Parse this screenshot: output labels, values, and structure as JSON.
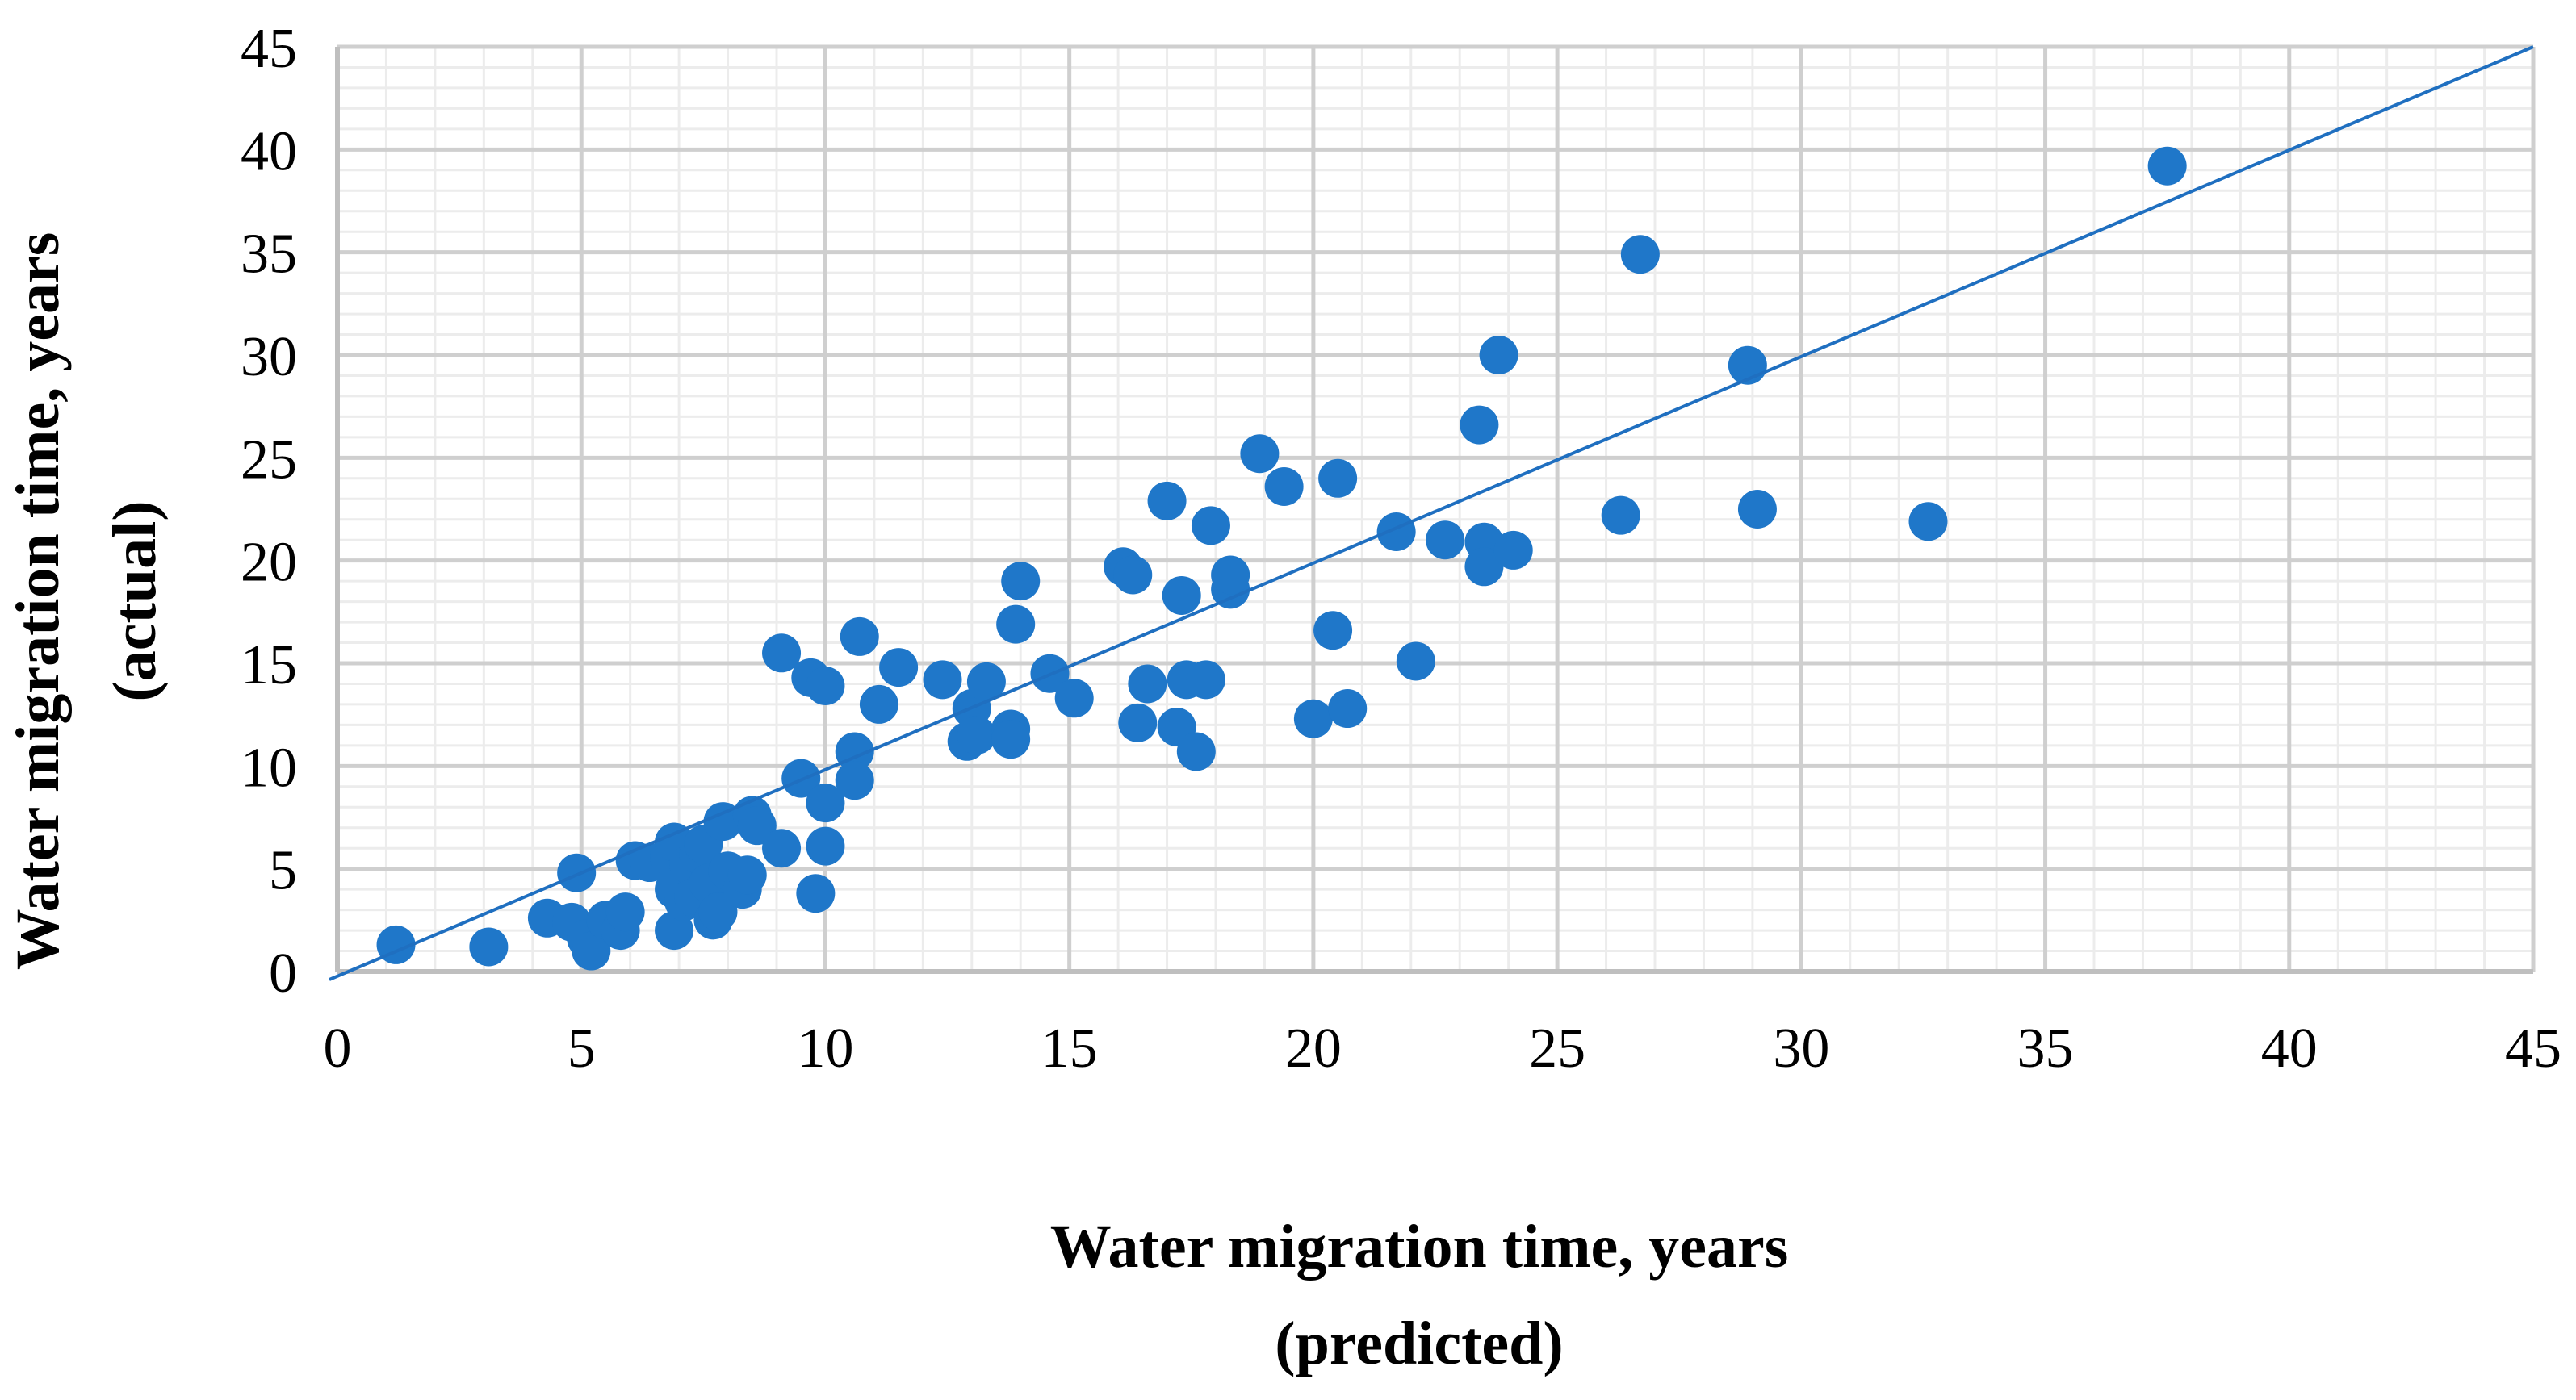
{
  "chart_data": {
    "type": "scatter",
    "title": "",
    "xlabel_lines": [
      "Water migration time, years",
      "(predicted)"
    ],
    "ylabel_lines": [
      "Water migration time, years",
      "(actual)"
    ],
    "xlim": [
      0,
      45
    ],
    "ylim": [
      0,
      45
    ],
    "x_ticks": [
      "0",
      "5",
      "10",
      "15",
      "20",
      "25",
      "30",
      "35",
      "40",
      "45"
    ],
    "y_ticks": [
      "0",
      "5",
      "10",
      "15",
      "20",
      "25",
      "30",
      "35",
      "40",
      "45"
    ],
    "major_step": 5,
    "minor_step": 1,
    "grid": true,
    "legend": "none",
    "reference_line": {
      "name": "y = x",
      "x": [
        0,
        45
      ],
      "y": [
        0,
        45
      ]
    },
    "colors": {
      "marker": "#1f77c9",
      "line": "#1f6fc0",
      "major_grid": "#cfcfcf",
      "minor_grid": "#ececec",
      "axis": "#bfbfbf"
    },
    "series": [
      {
        "name": "Observations",
        "points": [
          [
            1.2,
            1.3
          ],
          [
            3.1,
            1.2
          ],
          [
            4.3,
            2.6
          ],
          [
            4.8,
            2.4
          ],
          [
            4.9,
            4.8
          ],
          [
            5.1,
            1.6
          ],
          [
            5.2,
            1.0
          ],
          [
            5.5,
            2.5
          ],
          [
            5.8,
            2.0
          ],
          [
            5.9,
            2.9
          ],
          [
            6.1,
            5.4
          ],
          [
            6.4,
            5.3
          ],
          [
            6.8,
            5.6
          ],
          [
            6.9,
            6.3
          ],
          [
            6.9,
            4.0
          ],
          [
            6.9,
            2.0
          ],
          [
            7.0,
            4.6
          ],
          [
            7.1,
            3.4
          ],
          [
            7.2,
            5.2
          ],
          [
            7.3,
            3.6
          ],
          [
            7.4,
            5.7
          ],
          [
            7.5,
            6.2
          ],
          [
            7.6,
            4.3
          ],
          [
            7.7,
            2.5
          ],
          [
            7.8,
            2.9
          ],
          [
            7.9,
            7.3
          ],
          [
            8.0,
            4.9
          ],
          [
            8.3,
            4.0
          ],
          [
            8.4,
            4.7
          ],
          [
            8.5,
            7.6
          ],
          [
            8.6,
            7.1
          ],
          [
            9.1,
            6.0
          ],
          [
            9.1,
            15.5
          ],
          [
            9.5,
            9.4
          ],
          [
            9.7,
            14.3
          ],
          [
            9.8,
            3.8
          ],
          [
            10.0,
            13.9
          ],
          [
            10.0,
            6.1
          ],
          [
            10.0,
            8.2
          ],
          [
            10.6,
            10.7
          ],
          [
            10.6,
            9.3
          ],
          [
            10.7,
            16.3
          ],
          [
            11.1,
            13.0
          ],
          [
            11.5,
            14.8
          ],
          [
            12.4,
            14.2
          ],
          [
            12.9,
            11.2
          ],
          [
            13.0,
            12.8
          ],
          [
            13.1,
            11.5
          ],
          [
            13.3,
            14.1
          ],
          [
            13.8,
            11.8
          ],
          [
            13.8,
            11.3
          ],
          [
            13.9,
            16.9
          ],
          [
            14.0,
            19.0
          ],
          [
            14.6,
            14.5
          ],
          [
            15.1,
            13.3
          ],
          [
            16.1,
            19.7
          ],
          [
            16.3,
            19.3
          ],
          [
            16.4,
            12.1
          ],
          [
            16.6,
            14.0
          ],
          [
            17.0,
            22.9
          ],
          [
            17.2,
            11.9
          ],
          [
            17.3,
            18.3
          ],
          [
            17.4,
            14.2
          ],
          [
            17.6,
            10.7
          ],
          [
            17.8,
            14.2
          ],
          [
            17.9,
            21.7
          ],
          [
            18.3,
            18.6
          ],
          [
            18.3,
            19.3
          ],
          [
            18.9,
            25.2
          ],
          [
            19.4,
            23.6
          ],
          [
            20.0,
            12.3
          ],
          [
            20.4,
            16.6
          ],
          [
            20.5,
            24.0
          ],
          [
            20.7,
            12.8
          ],
          [
            21.7,
            21.4
          ],
          [
            22.1,
            15.1
          ],
          [
            22.7,
            21.0
          ],
          [
            23.4,
            26.6
          ],
          [
            23.5,
            20.9
          ],
          [
            23.5,
            19.7
          ],
          [
            23.8,
            30.0
          ],
          [
            24.1,
            20.5
          ],
          [
            26.3,
            22.2
          ],
          [
            26.7,
            34.9
          ],
          [
            28.9,
            29.5
          ],
          [
            29.1,
            22.5
          ],
          [
            32.6,
            21.9
          ],
          [
            37.5,
            39.2
          ]
        ]
      }
    ]
  }
}
